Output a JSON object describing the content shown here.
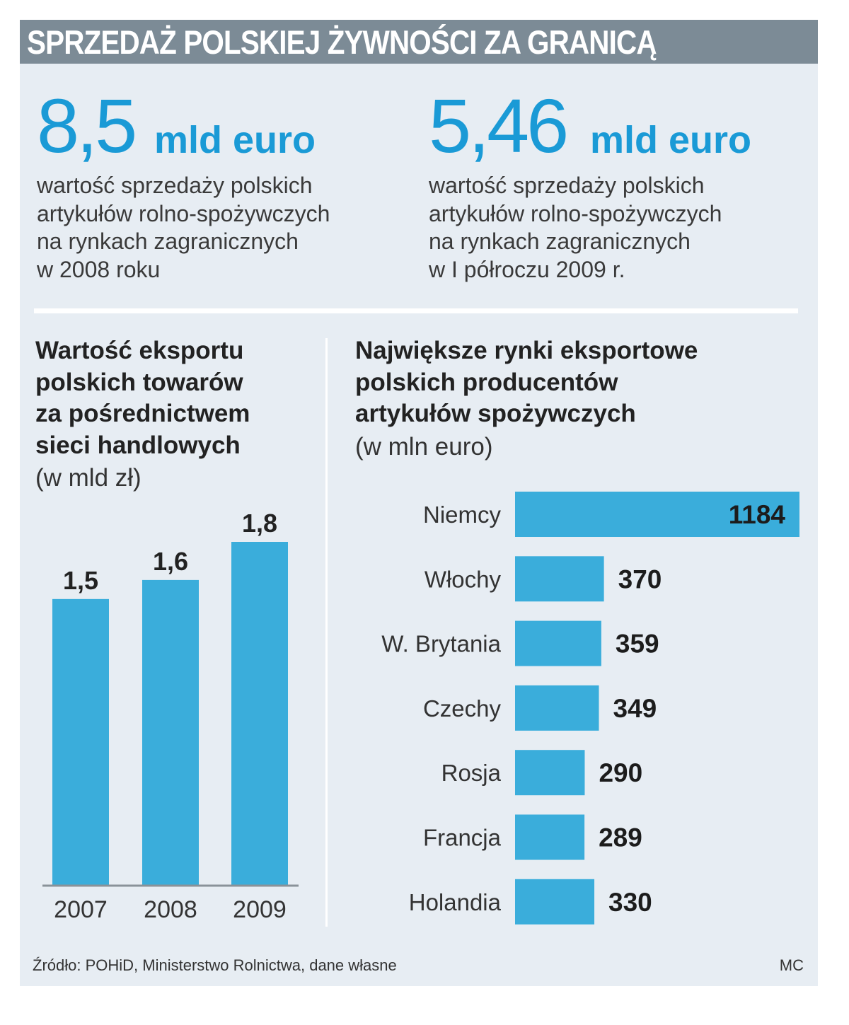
{
  "header": {
    "title": "SPRZEDAŻ POLSKIEJ ŻYWNOŚCI ZA GRANICĄ"
  },
  "stats": [
    {
      "value": "8,5",
      "unit": "mld euro",
      "lines": [
        "wartość sprzedaży polskich",
        "artykułów rolno-spożywczych",
        "na rynkach zagranicznych",
        "w 2008 roku"
      ]
    },
    {
      "value": "5,46",
      "unit": "mld euro",
      "lines": [
        "wartość sprzedaży polskich",
        "artykułów rolno-spożywczych",
        "na rynkach zagranicznych",
        "w I półroczu 2009 r."
      ]
    }
  ],
  "colors": {
    "accent": "#1a9ad6",
    "bar": "#3aaddb",
    "panel": "#e7edf3",
    "title_bar": "#7c8b96"
  },
  "chart_data": [
    {
      "type": "bar",
      "title_lines": [
        "Wartość eksportu",
        "polskich towarów",
        "za pośrednictwem",
        "sieci handlowych"
      ],
      "unit_label": "(w mld zł)",
      "categories": [
        "2007",
        "2008",
        "2009"
      ],
      "values": [
        1.5,
        1.6,
        1.8
      ],
      "value_labels": [
        "1,5",
        "1,6",
        "1,8"
      ],
      "ylim": [
        0,
        1.8
      ],
      "grid": false
    },
    {
      "type": "bar",
      "orientation": "horizontal",
      "title_lines": [
        "Największe rynki eksportowe",
        "polskich producentów",
        "artykułów spożywczych"
      ],
      "unit_label": "(w mln euro)",
      "categories": [
        "Niemcy",
        "Włochy",
        "W. Brytania",
        "Czechy",
        "Rosja",
        "Francja",
        "Holandia"
      ],
      "values": [
        1184,
        370,
        359,
        349,
        290,
        289,
        330
      ],
      "value_labels": [
        "1184",
        "370",
        "359",
        "349",
        "290",
        "289",
        "330"
      ],
      "xlim": [
        0,
        1184
      ],
      "grid": false
    }
  ],
  "footer": {
    "source": "Źródło: POHiD, Ministerstwo Rolnictwa, dane własne",
    "credit": "MC"
  }
}
